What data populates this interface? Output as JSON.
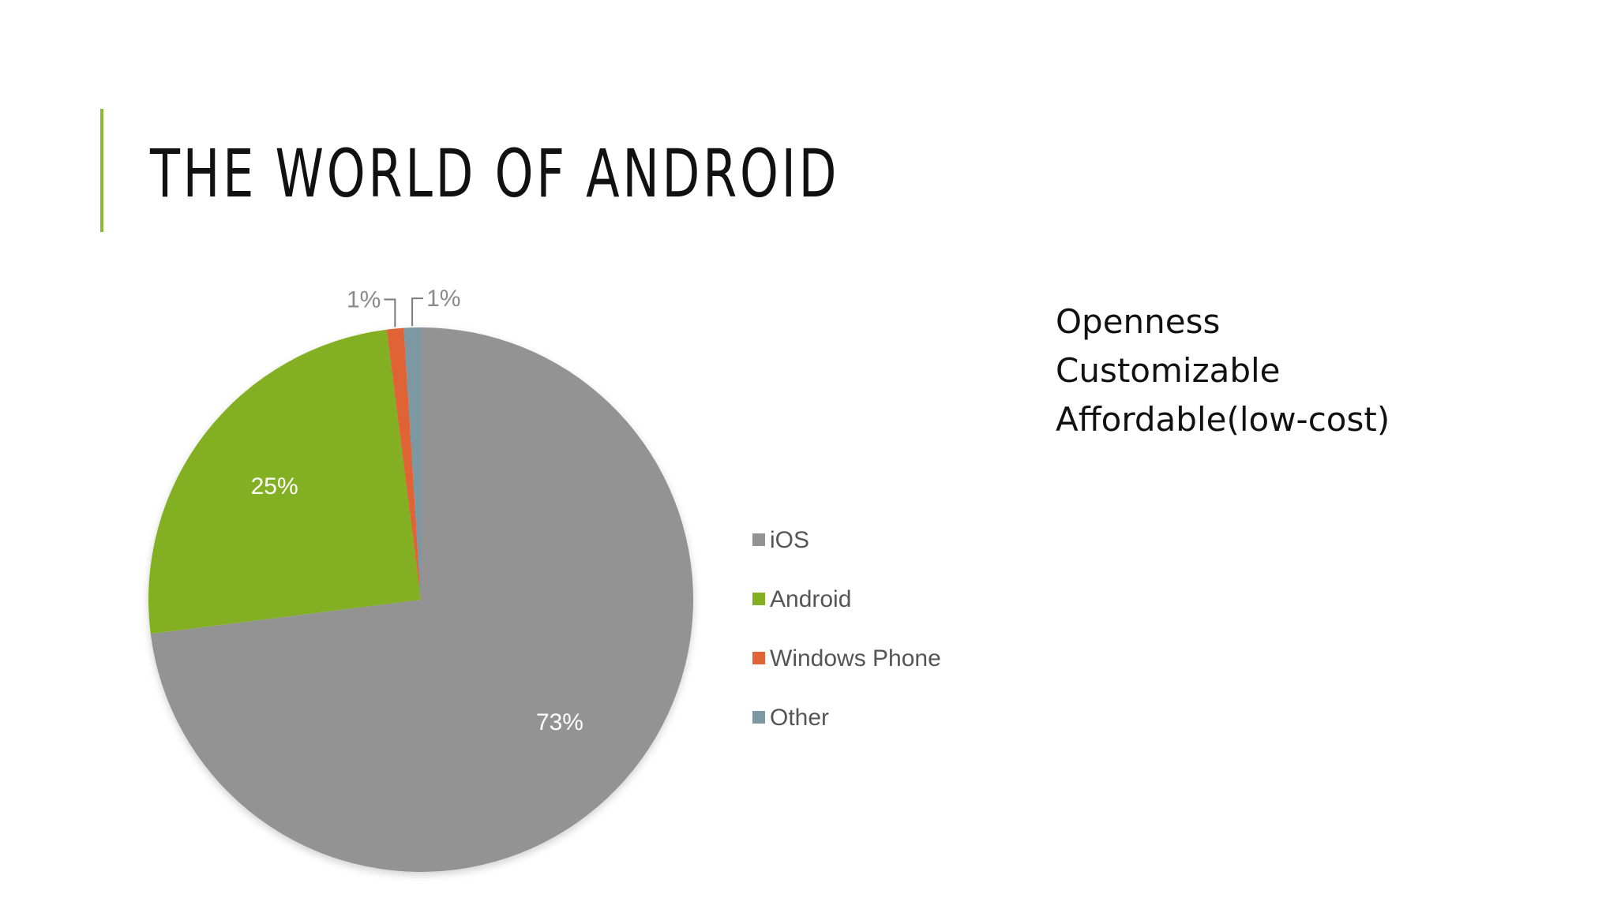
{
  "slide": {
    "title": "THE WORLD OF ANDROID",
    "accent_color": "#8bb832",
    "bullets": [
      "Openness",
      "Customizable",
      "Affordable(low-cost)"
    ]
  },
  "chart_data": {
    "type": "pie",
    "title": "",
    "legend_position": "right",
    "slices": [
      {
        "name": "iOS",
        "value": 73,
        "label": "73%",
        "color": "#939393",
        "label_placement": "inside"
      },
      {
        "name": "Android",
        "value": 25,
        "label": "25%",
        "color": "#82b022",
        "label_placement": "inside"
      },
      {
        "name": "Windows Phone",
        "value": 1,
        "label": "1%",
        "color": "#e06436",
        "label_placement": "outside"
      },
      {
        "name": "Other",
        "value": 1,
        "label": "1%",
        "color": "#7d97a3",
        "label_placement": "outside"
      }
    ]
  }
}
